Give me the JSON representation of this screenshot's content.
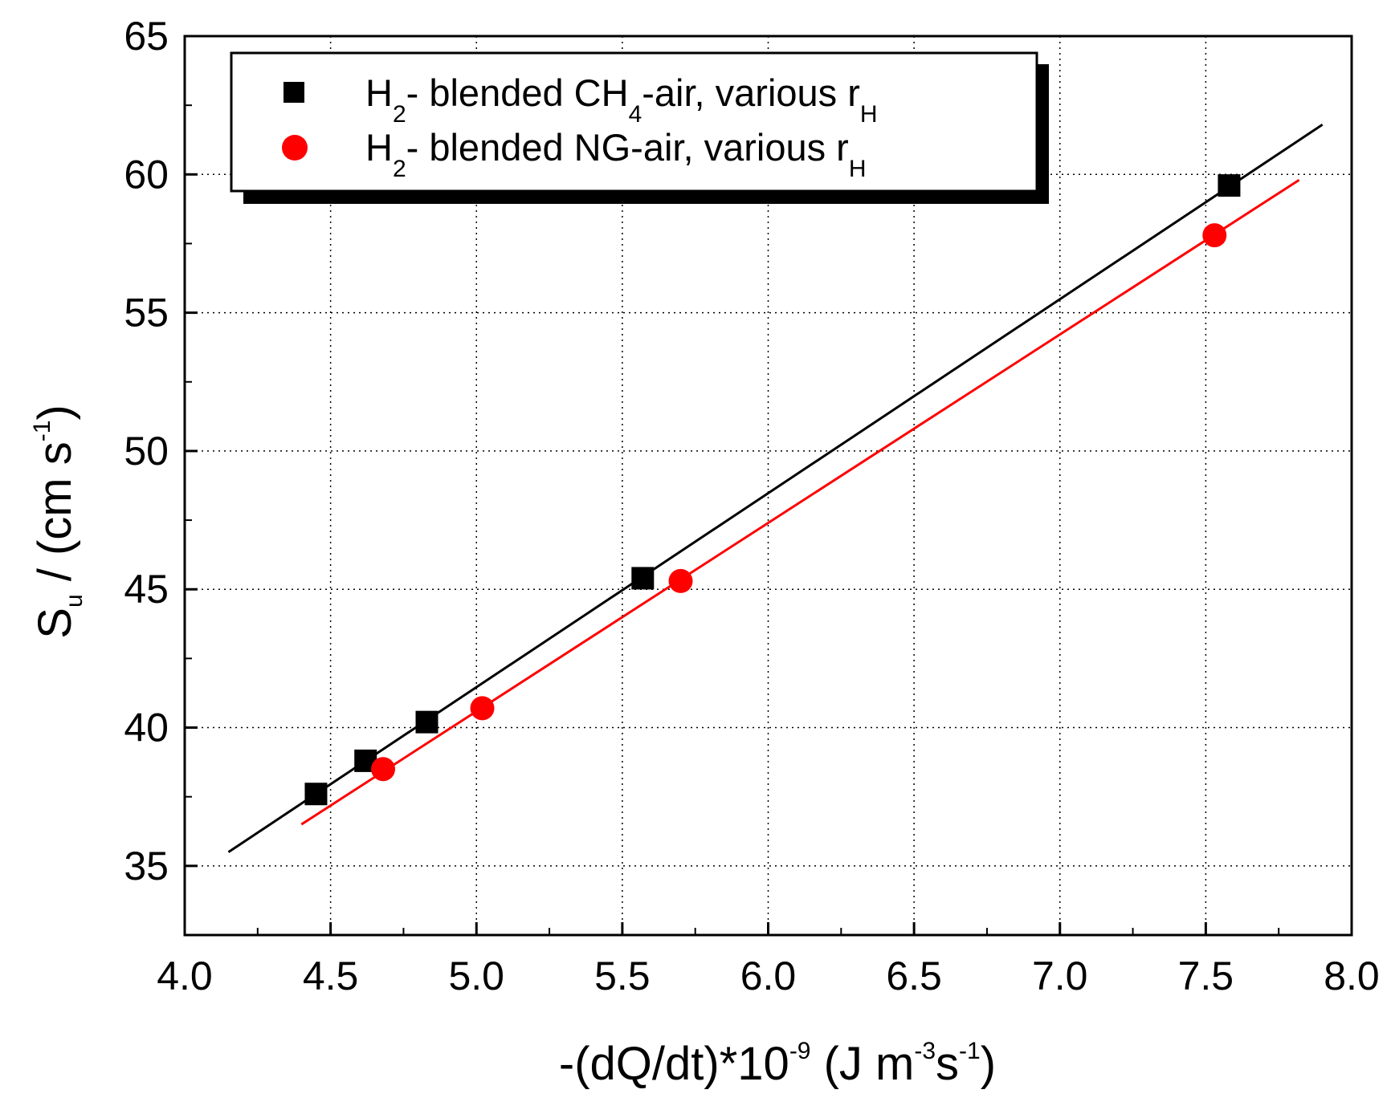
{
  "chart_data": {
    "type": "scatter",
    "xlabel": {
      "main": "-(dQ/dt)*10",
      "exp1": "-9",
      "mid": " (J m",
      "exp2": "-3",
      "mid2": "s",
      "exp3": "-1",
      "end": ")"
    },
    "ylabel": {
      "main": "S",
      "sub": "u",
      "mid": " / (cm s",
      "exp": "-1",
      "end": ")"
    },
    "xlim": [
      4.0,
      8.0
    ],
    "ylim": [
      32.5,
      65
    ],
    "x_ticks": [
      "4.0",
      "4.5",
      "5.0",
      "5.5",
      "6.0",
      "6.5",
      "7.0",
      "7.5",
      "8.0"
    ],
    "y_ticks": [
      "35",
      "40",
      "45",
      "50",
      "55",
      "60",
      "65"
    ],
    "grid": true,
    "legend_position": "top-left",
    "series": [
      {
        "name": "H2- blended CH4-air, various rH",
        "legend": {
          "a": "H",
          "a_sub": "2",
          "b": "- blended CH",
          "b_sub": "4",
          "c": "-air, various r",
          "c_sub": "H"
        },
        "marker": "square",
        "color": "#000000",
        "x": [
          4.45,
          4.62,
          4.83,
          5.57,
          7.58
        ],
        "y": [
          37.6,
          38.8,
          40.2,
          45.4,
          59.6
        ],
        "fit": {
          "x": [
            4.15,
            7.9
          ],
          "y": [
            35.5,
            61.8
          ]
        }
      },
      {
        "name": "H2- blended NG-air, various rH",
        "legend": {
          "a": "H",
          "a_sub": "2",
          "b": "- blended NG-air, various r",
          "b_sub": "",
          "c": "",
          "c_sub": "H"
        },
        "marker": "circle",
        "color": "#ff0000",
        "x": [
          4.68,
          5.02,
          5.7,
          7.53
        ],
        "y": [
          38.5,
          40.7,
          45.3,
          57.8
        ],
        "fit": {
          "x": [
            4.4,
            7.82
          ],
          "y": [
            36.5,
            59.8
          ]
        }
      }
    ]
  }
}
